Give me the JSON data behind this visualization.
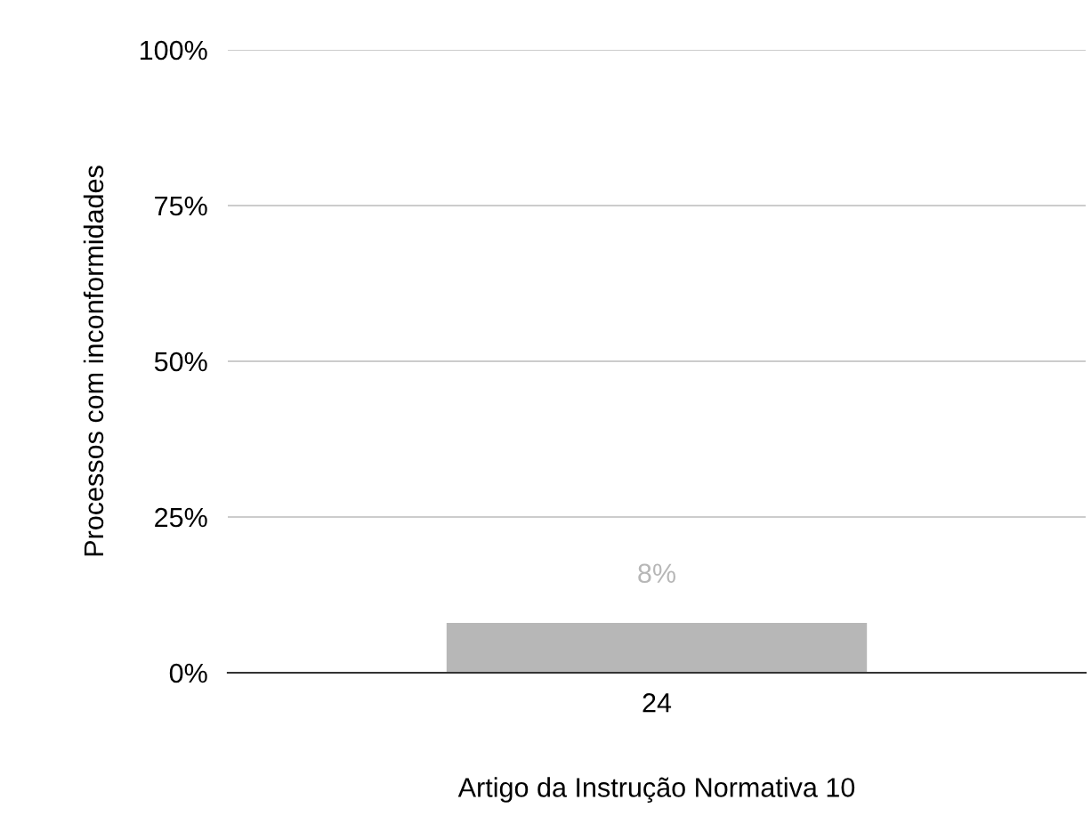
{
  "chart_data": {
    "type": "bar",
    "xlabel": "Artigo da Instrução Normativa 10",
    "ylabel": "Processos com inconformidades",
    "categories": [
      "24"
    ],
    "values": [
      8
    ],
    "color": "#b7b7b7",
    "value_labels": [
      "8%"
    ],
    "ylim": [
      0,
      100
    ],
    "yticks": [
      {
        "value": 0,
        "label": "0%"
      },
      {
        "value": 25,
        "label": "25%"
      },
      {
        "value": 50,
        "label": "50%"
      },
      {
        "value": 75,
        "label": "75%"
      },
      {
        "value": 100,
        "label": "100%"
      }
    ],
    "grid": "y"
  }
}
